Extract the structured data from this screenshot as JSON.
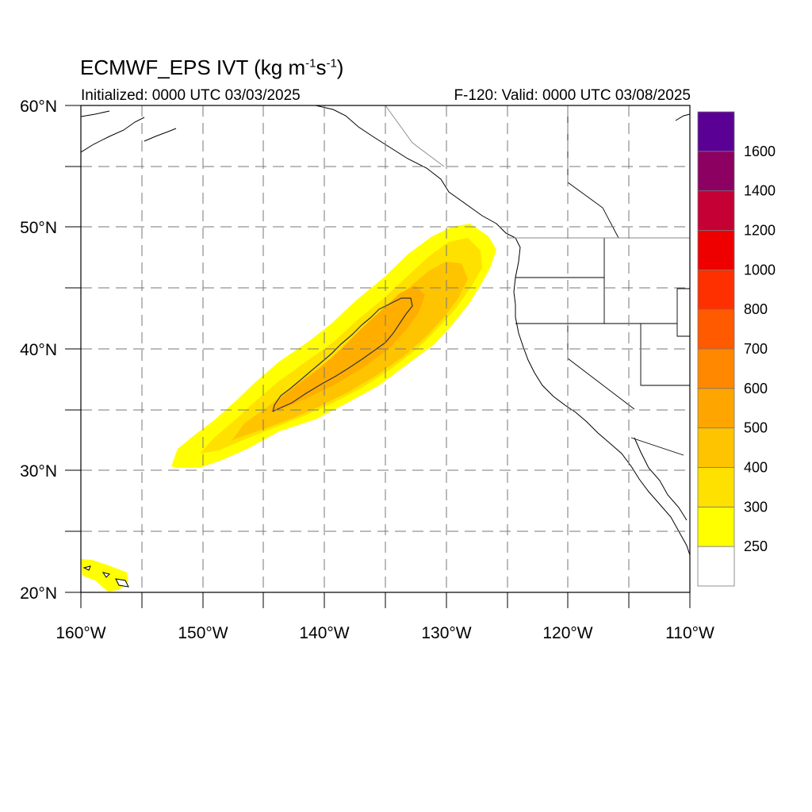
{
  "map": {
    "title_main": "ECMWF_EPS IVT (kg m",
    "title_sup1": "-1",
    "title_mid": "s",
    "title_sup2": "-1",
    "title_end": ")",
    "initialized": "Initialized: 0000 UTC 03/03/2025",
    "valid": "F-120: Valid: 0000 UTC 03/08/2025",
    "region": "Northeast Pacific / US West Coast",
    "lon_range": [
      -160,
      -110
    ],
    "lat_range": [
      20,
      60
    ],
    "lon_labels": [
      "160°W",
      "150°W",
      "140°W",
      "130°W",
      "120°W",
      "110°W"
    ],
    "lat_labels": [
      "60°N",
      "50°N",
      "40°N",
      "30°N",
      "20°N"
    ],
    "grid": "dashed, every 5 degrees",
    "features": [
      {
        "name": "atmospheric-river",
        "description": "IVT plume from ~30N 152W to ~49N 127W",
        "peak_ivt": "500-600 kg m-1 s-1"
      },
      {
        "name": "hawaii-ivt-patch",
        "description": "weak IVT near Hawaii, 250-300"
      }
    ]
  },
  "colorbar": {
    "labels": [
      "250",
      "300",
      "400",
      "500",
      "600",
      "700",
      "800",
      "1000",
      "1200",
      "1400",
      "1600"
    ],
    "colors": [
      "#ffffff",
      "#ffff00",
      "#ffe100",
      "#ffc400",
      "#ffa500",
      "#ff8800",
      "#ff5a00",
      "#ff3000",
      "#ee0000",
      "#c40034",
      "#8b0060",
      "#5a0094"
    ]
  }
}
